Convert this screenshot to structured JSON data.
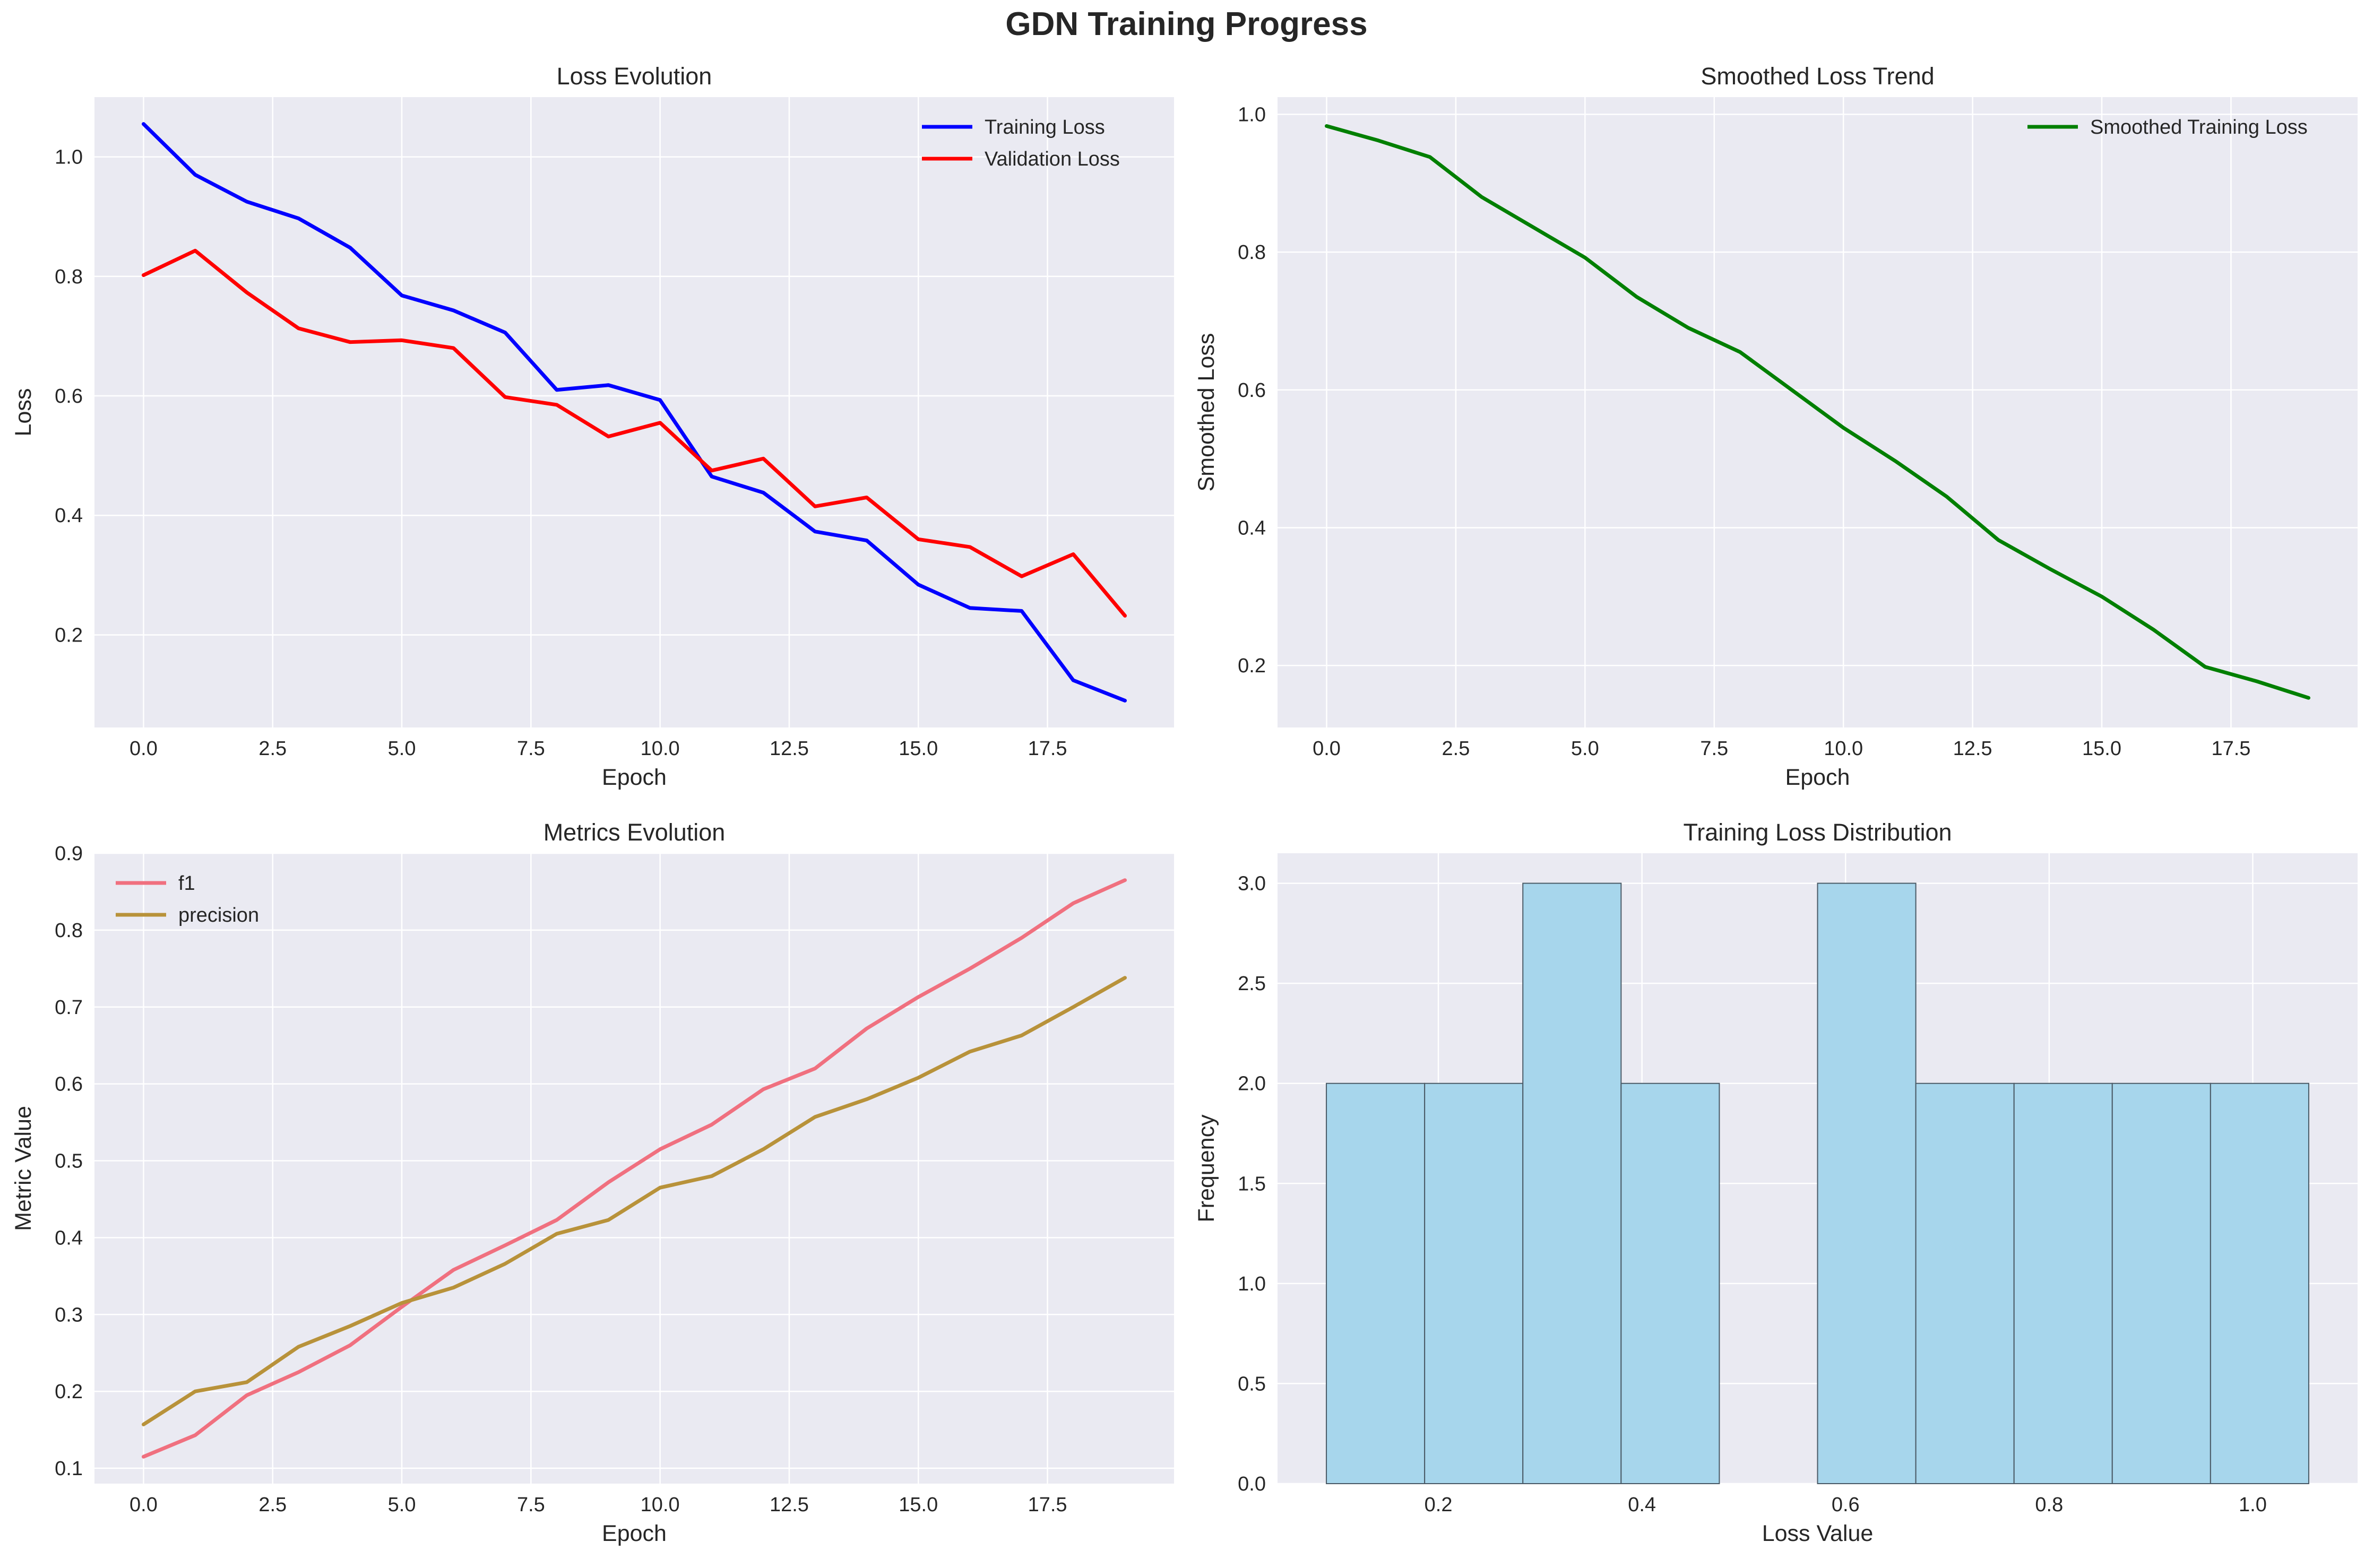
{
  "suptitle": "GDN Training Progress",
  "colors": {
    "axes_bg": "#EAEAF2",
    "grid": "#FFFFFF",
    "training": "#0000FF",
    "validation": "#FF0000",
    "smoothed": "#007F00",
    "f1": "#F0707F",
    "precision": "#B8923A",
    "hist_fill": "#A7D6EC",
    "hist_edge": "#4A5A66"
  },
  "chart_data": [
    {
      "id": "loss",
      "type": "line",
      "title": "Loss Evolution",
      "xlabel": "Epoch",
      "ylabel": "Loss",
      "xlim": [
        -0.95,
        19.95
      ],
      "ylim": [
        0.045,
        1.1
      ],
      "xticks": [
        0,
        2.5,
        5,
        7.5,
        10,
        12.5,
        15,
        17.5
      ],
      "xticklabels": [
        "0.0",
        "2.5",
        "5.0",
        "7.5",
        "10.0",
        "12.5",
        "15.0",
        "17.5"
      ],
      "yticks": [
        0.2,
        0.4,
        0.6,
        0.8,
        1.0
      ],
      "yticklabels": [
        "0.2",
        "0.4",
        "0.6",
        "0.8",
        "1.0"
      ],
      "grid": true,
      "legend": "upper right",
      "x": [
        0,
        1,
        2,
        3,
        4,
        5,
        6,
        7,
        8,
        9,
        10,
        11,
        12,
        13,
        14,
        15,
        16,
        17,
        18,
        19
      ],
      "series": [
        {
          "name": "Training Loss",
          "color": "#0000FF",
          "values": [
            1.055,
            0.97,
            0.925,
            0.897,
            0.848,
            0.768,
            0.743,
            0.706,
            0.61,
            0.618,
            0.593,
            0.465,
            0.438,
            0.373,
            0.358,
            0.284,
            0.245,
            0.24,
            0.124,
            0.09
          ]
        },
        {
          "name": "Validation Loss",
          "color": "#FF0000",
          "values": [
            0.802,
            0.843,
            0.773,
            0.713,
            0.69,
            0.693,
            0.68,
            0.598,
            0.585,
            0.532,
            0.555,
            0.475,
            0.495,
            0.415,
            0.43,
            0.36,
            0.347,
            0.298,
            0.335,
            0.232
          ]
        }
      ]
    },
    {
      "id": "smooth",
      "type": "line",
      "title": "Smoothed Loss Trend",
      "xlabel": "Epoch",
      "ylabel": "Smoothed Loss",
      "xlim": [
        -0.95,
        19.95
      ],
      "ylim": [
        0.11,
        1.025
      ],
      "xticks": [
        0,
        2.5,
        5,
        7.5,
        10,
        12.5,
        15,
        17.5
      ],
      "xticklabels": [
        "0.0",
        "2.5",
        "5.0",
        "7.5",
        "10.0",
        "12.5",
        "15.0",
        "17.5"
      ],
      "yticks": [
        0.2,
        0.4,
        0.6,
        0.8,
        1.0
      ],
      "yticklabels": [
        "0.2",
        "0.4",
        "0.6",
        "0.8",
        "1.0"
      ],
      "grid": true,
      "legend": "upper right",
      "x": [
        0,
        1,
        2,
        3,
        4,
        5,
        6,
        7,
        8,
        9,
        10,
        11,
        12,
        13,
        14,
        15,
        16,
        17,
        18,
        19
      ],
      "series": [
        {
          "name": "Smoothed Training Loss",
          "color": "#007F00",
          "values": [
            0.983,
            0.962,
            0.938,
            0.88,
            0.836,
            0.792,
            0.735,
            0.69,
            0.655,
            0.6,
            0.545,
            0.497,
            0.445,
            0.382,
            0.34,
            0.3,
            0.252,
            0.198,
            0.177,
            0.153
          ]
        }
      ]
    },
    {
      "id": "metrics",
      "type": "line",
      "title": "Metrics Evolution",
      "xlabel": "Epoch",
      "ylabel": "Metric Value",
      "xlim": [
        -0.95,
        19.95
      ],
      "ylim": [
        0.08,
        0.9
      ],
      "xticks": [
        0,
        2.5,
        5,
        7.5,
        10,
        12.5,
        15,
        17.5
      ],
      "xticklabels": [
        "0.0",
        "2.5",
        "5.0",
        "7.5",
        "10.0",
        "12.5",
        "15.0",
        "17.5"
      ],
      "yticks": [
        0.1,
        0.2,
        0.3,
        0.4,
        0.5,
        0.6,
        0.7,
        0.8,
        0.9
      ],
      "yticklabels": [
        "0.1",
        "0.2",
        "0.3",
        "0.4",
        "0.5",
        "0.6",
        "0.7",
        "0.8",
        "0.9"
      ],
      "grid": true,
      "legend": "upper left",
      "x": [
        0,
        1,
        2,
        3,
        4,
        5,
        6,
        7,
        8,
        9,
        10,
        11,
        12,
        13,
        14,
        15,
        16,
        17,
        18,
        19
      ],
      "series": [
        {
          "name": "f1",
          "color": "#F0707F",
          "values": [
            0.115,
            0.143,
            0.195,
            0.225,
            0.26,
            0.31,
            0.358,
            0.39,
            0.423,
            0.472,
            0.515,
            0.547,
            0.593,
            0.62,
            0.672,
            0.713,
            0.75,
            0.79,
            0.835,
            0.865
          ]
        },
        {
          "name": "precision",
          "color": "#B8923A",
          "values": [
            0.157,
            0.2,
            0.212,
            0.258,
            0.285,
            0.315,
            0.335,
            0.366,
            0.405,
            0.423,
            0.465,
            0.48,
            0.515,
            0.557,
            0.58,
            0.608,
            0.642,
            0.663,
            0.7,
            0.738
          ]
        }
      ]
    },
    {
      "id": "hist",
      "type": "bar",
      "title": "Training Loss Distribution",
      "xlabel": "Loss Value",
      "ylabel": "Frequency",
      "xlim": [
        0.042,
        1.103
      ],
      "ylim": [
        0,
        3.15
      ],
      "xticks": [
        0.2,
        0.4,
        0.6,
        0.8,
        1.0
      ],
      "xticklabels": [
        "0.2",
        "0.4",
        "0.6",
        "0.8",
        "1.0"
      ],
      "yticks": [
        0,
        0.5,
        1.0,
        1.5,
        2.0,
        2.5,
        3.0
      ],
      "yticklabels": [
        "0.0",
        "0.5",
        "1.0",
        "1.5",
        "2.0",
        "2.5",
        "3.0"
      ],
      "grid": true,
      "bin_edges": [
        0.09,
        0.1865,
        0.283,
        0.3795,
        0.476,
        0.5725,
        0.669,
        0.7655,
        0.862,
        0.9585,
        1.055
      ],
      "counts": [
        2,
        2,
        3,
        2,
        0,
        3,
        2,
        2,
        2,
        2
      ]
    }
  ]
}
